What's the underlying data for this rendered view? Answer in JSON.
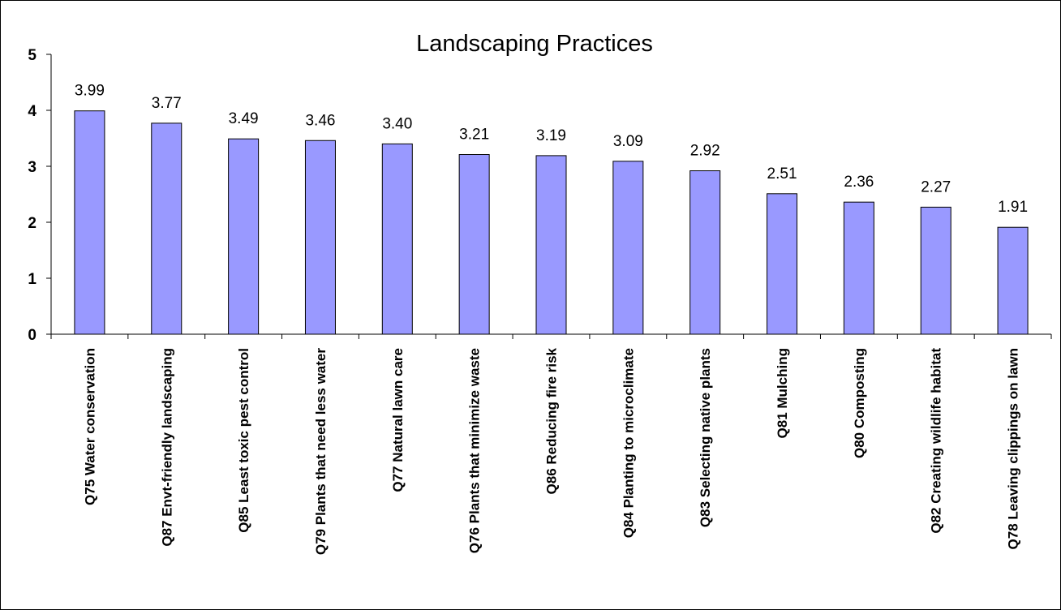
{
  "chart_data": {
    "type": "bar",
    "title": "Landscaping Practices",
    "xlabel": "",
    "ylabel": "",
    "ylim": [
      0,
      5
    ],
    "yticks": [
      "0",
      "1",
      "2",
      "3",
      "4",
      "5"
    ],
    "grid": false,
    "legend": "none",
    "bar_color": "#9999FF",
    "bar_edge_color": "#000000",
    "categories": [
      "Q75 Water conservation",
      "Q87 Envt-friendly landscaping",
      "Q85 Least toxic pest control",
      "Q79 Plants that need less water",
      "Q77 Natural lawn care",
      "Q76 Plants that minimize waste",
      "Q86 Reducing fire risk",
      "Q84 Planting to microclimate",
      "Q83 Selecting native plants",
      "Q81 Mulching",
      "Q80 Composting",
      "Q82 Creating wildlife habitat",
      "Q78 Leaving clippings on lawn"
    ],
    "values": [
      3.99,
      3.77,
      3.49,
      3.46,
      3.4,
      3.21,
      3.19,
      3.09,
      2.92,
      2.51,
      2.36,
      2.27,
      1.91
    ],
    "data_labels": [
      "3.99",
      "3.77",
      "3.49",
      "3.46",
      "3.40",
      "3.21",
      "3.19",
      "3.09",
      "2.92",
      "2.51",
      "2.36",
      "2.27",
      "1.91"
    ]
  }
}
